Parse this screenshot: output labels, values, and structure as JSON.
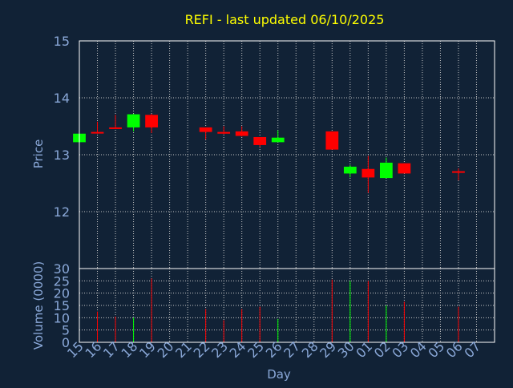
{
  "title": "REFI - last updated 06/10/2025",
  "colors": {
    "background": "#112236",
    "title": "#ffff00",
    "axis_text": "#8aa8d8",
    "frame": "#ffffff",
    "grid": "#c8c8c8",
    "up": "#00ff00",
    "down": "#ff0000"
  },
  "chart_data": [
    {
      "type": "candlestick",
      "ylabel": "Price",
      "ylim": [
        11,
        15
      ],
      "yticks": [
        12,
        13,
        14,
        15
      ],
      "grid": true,
      "candles": [
        {
          "day": "15",
          "open": 13.22,
          "high": 13.37,
          "low": 13.22,
          "close": 13.37
        },
        {
          "day": "16",
          "open": 13.4,
          "high": 13.58,
          "low": 13.37,
          "close": 13.38
        },
        {
          "day": "17",
          "open": 13.48,
          "high": 13.7,
          "low": 13.46,
          "close": 13.46
        },
        {
          "day": "18",
          "open": 13.48,
          "high": 13.72,
          "low": 13.41,
          "close": 13.71
        },
        {
          "day": "19",
          "open": 13.7,
          "high": 13.72,
          "low": 13.38,
          "close": 13.48
        },
        {
          "day": "22",
          "open": 13.48,
          "high": 13.48,
          "low": 13.27,
          "close": 13.4
        },
        {
          "day": "23",
          "open": 13.4,
          "high": 13.5,
          "low": 13.36,
          "close": 13.37
        },
        {
          "day": "24",
          "open": 13.41,
          "high": 13.5,
          "low": 13.32,
          "close": 13.33
        },
        {
          "day": "25",
          "open": 13.31,
          "high": 13.31,
          "low": 13.14,
          "close": 13.17
        },
        {
          "day": "26",
          "open": 13.22,
          "high": 13.43,
          "low": 13.22,
          "close": 13.3
        },
        {
          "day": "29",
          "open": 13.41,
          "high": 13.41,
          "low": 13.09,
          "close": 13.09
        },
        {
          "day": "30",
          "open": 12.67,
          "high": 12.82,
          "low": 12.6,
          "close": 12.79
        },
        {
          "day": "01",
          "open": 12.75,
          "high": 12.98,
          "low": 12.33,
          "close": 12.6
        },
        {
          "day": "02",
          "open": 12.59,
          "high": 12.95,
          "low": 12.59,
          "close": 12.86
        },
        {
          "day": "03",
          "open": 12.85,
          "high": 12.85,
          "low": 12.67,
          "close": 12.67
        },
        {
          "day": "06",
          "open": 12.71,
          "high": 12.76,
          "low": 12.55,
          "close": 12.69
        }
      ]
    },
    {
      "type": "bar",
      "ylabel": "Volume (0000)",
      "xlabel": "Day",
      "ylim": [
        0,
        30
      ],
      "yticks": [
        0,
        5,
        10,
        15,
        20,
        25,
        30
      ],
      "grid": true,
      "categories": [
        "15",
        "16",
        "17",
        "18",
        "19",
        "20",
        "21",
        "22",
        "23",
        "24",
        "25",
        "26",
        "27",
        "28",
        "29",
        "30",
        "01",
        "02",
        "03",
        "04",
        "05",
        "06",
        "07"
      ],
      "volumes": [
        {
          "day": "16",
          "value": 12.5,
          "direction": "down"
        },
        {
          "day": "17",
          "value": 10.5,
          "direction": "down"
        },
        {
          "day": "18",
          "value": 10.0,
          "direction": "up"
        },
        {
          "day": "19",
          "value": 26.0,
          "direction": "down"
        },
        {
          "day": "22",
          "value": 13.5,
          "direction": "down"
        },
        {
          "day": "23",
          "value": 9.0,
          "direction": "down"
        },
        {
          "day": "24",
          "value": 13.5,
          "direction": "down"
        },
        {
          "day": "25",
          "value": 14.5,
          "direction": "down"
        },
        {
          "day": "26",
          "value": 9.5,
          "direction": "up"
        },
        {
          "day": "29",
          "value": 25.5,
          "direction": "down"
        },
        {
          "day": "30",
          "value": 25.0,
          "direction": "up"
        },
        {
          "day": "01",
          "value": 25.0,
          "direction": "down"
        },
        {
          "day": "02",
          "value": 15.0,
          "direction": "up"
        },
        {
          "day": "03",
          "value": 16.5,
          "direction": "down"
        },
        {
          "day": "06",
          "value": 14.5,
          "direction": "down"
        }
      ]
    }
  ]
}
